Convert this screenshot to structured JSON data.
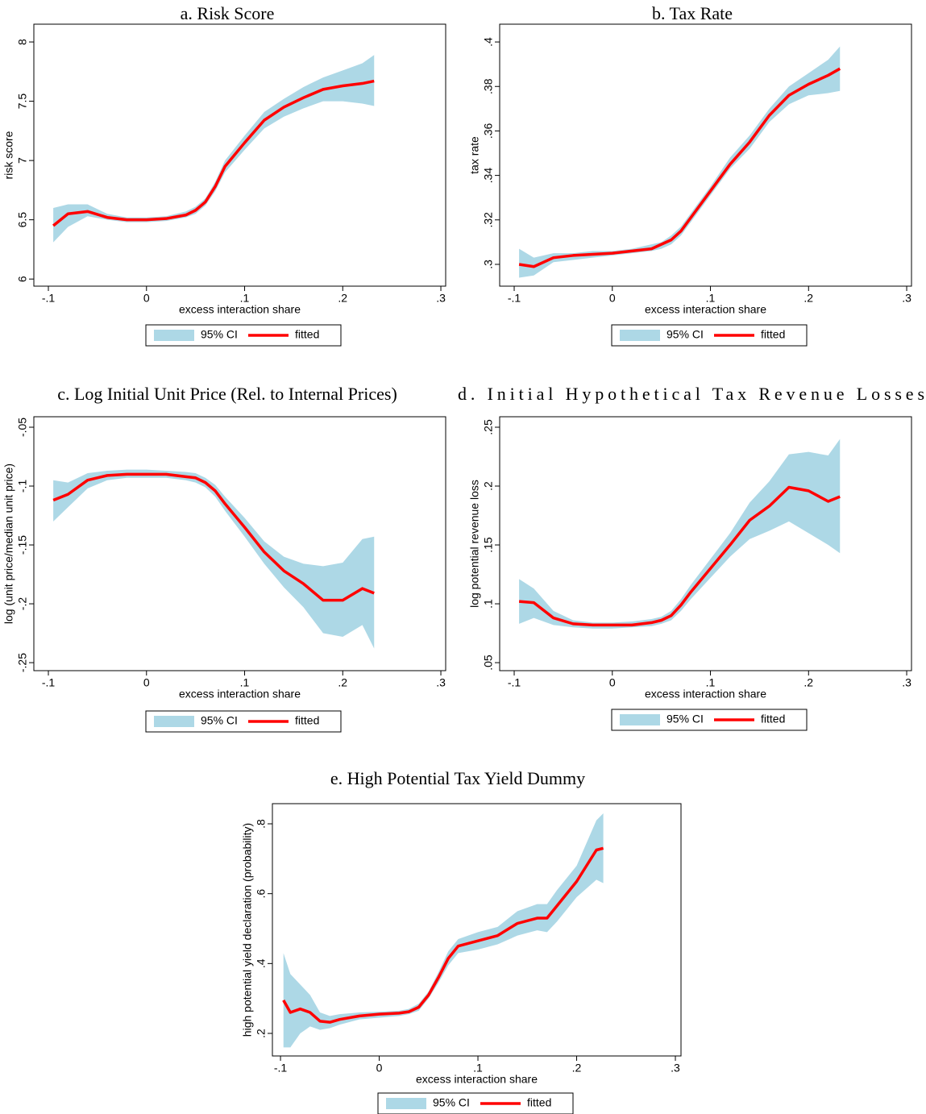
{
  "chart_data": [
    {
      "type": "line",
      "title": "a. Risk Score",
      "xlabel": "excess interaction share",
      "ylabel": "risk score",
      "x": [
        -0.095,
        -0.08,
        -0.06,
        -0.04,
        -0.02,
        0,
        0.02,
        0.04,
        0.05,
        0.06,
        0.07,
        0.08,
        0.1,
        0.12,
        0.14,
        0.16,
        0.18,
        0.2,
        0.22,
        0.232
      ],
      "series": [
        {
          "name": "95% CI",
          "type": "band",
          "color": "#add8e6",
          "lower": [
            6.31,
            6.44,
            6.53,
            6.5,
            6.48,
            6.48,
            6.49,
            6.52,
            6.55,
            6.62,
            6.74,
            6.9,
            7.09,
            7.27,
            7.37,
            7.44,
            7.5,
            7.5,
            7.48,
            7.46
          ],
          "upper": [
            6.6,
            6.63,
            6.63,
            6.55,
            6.52,
            6.52,
            6.53,
            6.57,
            6.61,
            6.68,
            6.82,
            7.0,
            7.21,
            7.41,
            7.52,
            7.62,
            7.7,
            7.76,
            7.82,
            7.89
          ]
        },
        {
          "name": "fitted",
          "color": "#ff0000",
          "values": [
            6.45,
            6.55,
            6.57,
            6.52,
            6.5,
            6.5,
            6.51,
            6.54,
            6.58,
            6.65,
            6.78,
            6.95,
            7.15,
            7.34,
            7.45,
            7.53,
            7.6,
            7.63,
            7.65,
            7.67
          ]
        }
      ],
      "xlim": [
        -0.1148,
        0.3049
      ],
      "xticks": [
        {
          "value": -0.1,
          "label": "-.1"
        },
        0,
        {
          "value": 0.1,
          "label": ".1"
        },
        {
          "value": 0.2,
          "label": ".2"
        },
        {
          "value": 0.3,
          "label": ".3"
        }
      ],
      "ylim": [
        5.94,
        8.15
      ],
      "yticks": [
        6,
        6.5,
        7,
        7.5,
        8
      ]
    },
    {
      "type": "line",
      "title": "b. Tax Rate",
      "xlabel": "excess interaction share",
      "ylabel": "tax rate",
      "x": [
        -0.095,
        -0.08,
        -0.06,
        -0.04,
        -0.02,
        0,
        0.02,
        0.04,
        0.05,
        0.06,
        0.07,
        0.08,
        0.1,
        0.12,
        0.14,
        0.16,
        0.18,
        0.2,
        0.22,
        0.232
      ],
      "series": [
        {
          "name": "95% CI",
          "type": "band",
          "color": "#add8e6",
          "lower": [
            0.294,
            0.295,
            0.301,
            0.302,
            0.303,
            0.304,
            0.305,
            0.306,
            0.307,
            0.309,
            0.313,
            0.319,
            0.331,
            0.343,
            0.352,
            0.364,
            0.372,
            0.376,
            0.377,
            0.378
          ],
          "upper": [
            0.307,
            0.303,
            0.305,
            0.305,
            0.306,
            0.306,
            0.307,
            0.309,
            0.31,
            0.313,
            0.317,
            0.323,
            0.335,
            0.348,
            0.358,
            0.37,
            0.38,
            0.386,
            0.392,
            0.398
          ]
        },
        {
          "name": "fitted",
          "color": "#ff0000",
          "values": [
            0.3,
            0.299,
            0.303,
            0.304,
            0.3045,
            0.305,
            0.306,
            0.307,
            0.309,
            0.311,
            0.315,
            0.321,
            0.333,
            0.345,
            0.355,
            0.367,
            0.376,
            0.381,
            0.385,
            0.388
          ]
        }
      ],
      "xlim": [
        -0.1148,
        0.3049
      ],
      "xticks": [
        {
          "value": -0.1,
          "label": "-.1"
        },
        0,
        {
          "value": 0.1,
          "label": ".1"
        },
        {
          "value": 0.2,
          "label": ".2"
        },
        {
          "value": 0.3,
          "label": ".3"
        }
      ],
      "ylim": [
        0.2902,
        0.408
      ],
      "yticks": [
        {
          "value": 0.3,
          "label": ".3"
        },
        {
          "value": 0.32,
          "label": ".32"
        },
        {
          "value": 0.34,
          "label": ".34"
        },
        {
          "value": 0.36,
          "label": ".36"
        },
        {
          "value": 0.38,
          "label": ".38"
        },
        {
          "value": 0.4,
          "label": ".4"
        }
      ]
    },
    {
      "type": "line",
      "title": "c. Log Initial Unit Price (Rel. to Internal Prices)",
      "xlabel": "excess interaction share",
      "ylabel": "log (unit price/median unit price)",
      "x": [
        -0.095,
        -0.08,
        -0.06,
        -0.04,
        -0.02,
        0,
        0.02,
        0.04,
        0.05,
        0.06,
        0.07,
        0.08,
        0.1,
        0.12,
        0.14,
        0.16,
        0.18,
        0.2,
        0.22,
        0.232
      ],
      "series": [
        {
          "name": "95% CI",
          "type": "band",
          "color": "#add8e6",
          "lower": [
            -0.13,
            -0.118,
            -0.102,
            -0.095,
            -0.093,
            -0.093,
            -0.093,
            -0.095,
            -0.097,
            -0.101,
            -0.109,
            -0.121,
            -0.143,
            -0.166,
            -0.186,
            -0.203,
            -0.225,
            -0.228,
            -0.218,
            -0.238
          ],
          "upper": [
            -0.095,
            -0.097,
            -0.089,
            -0.087,
            -0.086,
            -0.086,
            -0.087,
            -0.088,
            -0.089,
            -0.093,
            -0.099,
            -0.109,
            -0.127,
            -0.147,
            -0.16,
            -0.166,
            -0.168,
            -0.165,
            -0.145,
            -0.143
          ]
        },
        {
          "name": "fitted",
          "color": "#ff0000",
          "values": [
            -0.112,
            -0.107,
            -0.095,
            -0.091,
            -0.09,
            -0.09,
            -0.09,
            -0.092,
            -0.093,
            -0.097,
            -0.104,
            -0.115,
            -0.135,
            -0.156,
            -0.172,
            -0.183,
            -0.197,
            -0.197,
            -0.187,
            -0.191
          ]
        }
      ],
      "xlim": [
        -0.1148,
        0.3049
      ],
      "xticks": [
        {
          "value": -0.1,
          "label": "-.1"
        },
        0,
        {
          "value": 0.1,
          "label": ".1"
        },
        {
          "value": 0.2,
          "label": ".2"
        },
        {
          "value": 0.3,
          "label": ".3"
        }
      ],
      "ylim": [
        -0.2568,
        -0.0411
      ],
      "yticks": [
        {
          "value": -0.25,
          "label": "-.25"
        },
        {
          "value": -0.2,
          "label": "-.2"
        },
        {
          "value": -0.15,
          "label": "-.15"
        },
        {
          "value": -0.1,
          "label": "-.1"
        },
        {
          "value": -0.05,
          "label": "-.05"
        }
      ]
    },
    {
      "type": "line",
      "title": "d. Initial Hypothetical Tax Revenue Losses",
      "xlabel": "excess interaction share",
      "ylabel": "log potential revenue loss",
      "x": [
        -0.095,
        -0.08,
        -0.06,
        -0.04,
        -0.02,
        0,
        0.02,
        0.04,
        0.05,
        0.06,
        0.07,
        0.08,
        0.1,
        0.12,
        0.14,
        0.16,
        0.18,
        0.2,
        0.22,
        0.232
      ],
      "series": [
        {
          "name": "95% CI",
          "type": "band",
          "color": "#add8e6",
          "lower": [
            0.083,
            0.088,
            0.082,
            0.08,
            0.079,
            0.079,
            0.08,
            0.081,
            0.083,
            0.086,
            0.094,
            0.104,
            0.122,
            0.14,
            0.155,
            0.162,
            0.17,
            0.16,
            0.15,
            0.143
          ],
          "upper": [
            0.121,
            0.113,
            0.094,
            0.086,
            0.084,
            0.084,
            0.085,
            0.087,
            0.089,
            0.094,
            0.104,
            0.116,
            0.138,
            0.16,
            0.186,
            0.204,
            0.227,
            0.229,
            0.226,
            0.24
          ]
        },
        {
          "name": "fitted",
          "color": "#ff0000",
          "values": [
            0.102,
            0.101,
            0.088,
            0.083,
            0.082,
            0.082,
            0.082,
            0.084,
            0.086,
            0.09,
            0.099,
            0.11,
            0.13,
            0.15,
            0.171,
            0.183,
            0.199,
            0.196,
            0.187,
            0.191
          ]
        }
      ],
      "xlim": [
        -0.1148,
        0.3049
      ],
      "xticks": [
        {
          "value": -0.1,
          "label": "-.1"
        },
        0,
        {
          "value": 0.1,
          "label": ".1"
        },
        {
          "value": 0.2,
          "label": ".2"
        },
        {
          "value": 0.3,
          "label": ".3"
        }
      ],
      "ylim": [
        0.0432,
        0.2589
      ],
      "yticks": [
        {
          "value": 0.05,
          "label": ".05"
        },
        {
          "value": 0.1,
          "label": ".1"
        },
        {
          "value": 0.15,
          "label": ".15"
        },
        {
          "value": 0.2,
          "label": ".2"
        },
        {
          "value": 0.25,
          "label": ".25"
        }
      ]
    },
    {
      "type": "line",
      "title": "e. High Potential Tax Yield Dummy",
      "xlabel": "excess interaction share",
      "ylabel": "high potential yield declaration (probability)",
      "x": [
        -0.097,
        -0.09,
        -0.08,
        -0.07,
        -0.06,
        -0.05,
        -0.04,
        -0.02,
        0,
        0.02,
        0.03,
        0.04,
        0.05,
        0.06,
        0.07,
        0.08,
        0.1,
        0.12,
        0.14,
        0.16,
        0.17,
        0.18,
        0.2,
        0.22,
        0.227
      ],
      "series": [
        {
          "name": "95% CI",
          "type": "band",
          "color": "#add8e6",
          "lower": [
            0.16,
            0.16,
            0.2,
            0.22,
            0.21,
            0.215,
            0.225,
            0.24,
            0.245,
            0.25,
            0.255,
            0.265,
            0.3,
            0.345,
            0.395,
            0.43,
            0.44,
            0.455,
            0.48,
            0.495,
            0.49,
            0.52,
            0.59,
            0.64,
            0.63
          ],
          "upper": [
            0.43,
            0.37,
            0.34,
            0.31,
            0.26,
            0.25,
            0.255,
            0.26,
            0.262,
            0.265,
            0.27,
            0.285,
            0.32,
            0.375,
            0.435,
            0.47,
            0.49,
            0.505,
            0.55,
            0.57,
            0.57,
            0.61,
            0.68,
            0.81,
            0.83
          ]
        },
        {
          "name": "fitted",
          "color": "#ff0000",
          "values": [
            0.295,
            0.26,
            0.27,
            0.26,
            0.235,
            0.232,
            0.24,
            0.25,
            0.255,
            0.258,
            0.262,
            0.275,
            0.31,
            0.36,
            0.415,
            0.45,
            0.465,
            0.48,
            0.515,
            0.53,
            0.53,
            0.565,
            0.635,
            0.725,
            0.73
          ]
        }
      ],
      "xlim": [
        -0.1082,
        0.3057
      ],
      "xticks": [
        {
          "value": -0.1,
          "label": "-.1"
        },
        0,
        {
          "value": 0.1,
          "label": ".1"
        },
        {
          "value": 0.2,
          "label": ".2"
        },
        {
          "value": 0.3,
          "label": ".3"
        }
      ],
      "ylim": [
        0.1354,
        0.8577
      ],
      "yticks": [
        {
          "value": 0.2,
          "label": ".2"
        },
        {
          "value": 0.4,
          "label": ".4"
        },
        {
          "value": 0.6,
          "label": ".6"
        },
        {
          "value": 0.8,
          "label": ".8"
        }
      ]
    }
  ]
}
